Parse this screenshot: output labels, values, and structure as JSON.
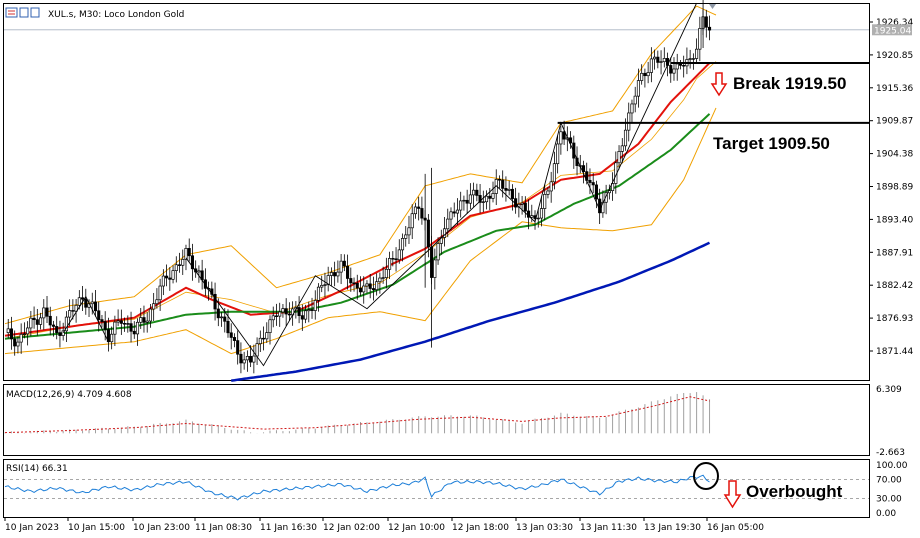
{
  "header": {
    "symbol": "XUL.s, M30:  Loco London Gold"
  },
  "indicators": {
    "macd_label": "MACD(12,26,9) 4.709 4.608",
    "rsi_label": "RSI(14) 66.31"
  },
  "annotations": {
    "break": "Break 1919.50",
    "target": "Target 1909.50",
    "overbought": "Overbought"
  },
  "colors": {
    "bull_candle": "#000000",
    "bear_candle": "#000000",
    "ma_fast": "#e3120b",
    "ma_mid": "#1a8c1a",
    "ma_slow": "#0018b5",
    "bollinger": "#f0a000",
    "macd_signal": "#d01818",
    "macd_hist": "#a0a0a0",
    "rsi_line": "#1e7fd8",
    "arrow": "#e3120b"
  },
  "chart_data": [
    {
      "type": "line",
      "name": "price",
      "chart_kind": "candlestick",
      "ylim": [
        1866.5,
        1931.0
      ],
      "y_ticks": [
        "1926.34",
        "1920.85",
        "1915.36",
        "1909.87",
        "1904.38",
        "1898.89",
        "1893.40",
        "1887.91",
        "1882.42",
        "1876.93",
        "1871.44"
      ],
      "current_price": "1925.04",
      "x_ticks": [
        "10 Jan 2023",
        "10 Jan 15:00",
        "10 Jan 23:00",
        "11 Jan 08:30",
        "11 Jan 16:30",
        "12 Jan 02:00",
        "12 Jan 10:00",
        "12 Jan 18:00",
        "13 Jan 03:30",
        "13 Jan 11:30",
        "13 Jan 19:30",
        "16 Jan 05:00"
      ],
      "levels": [
        {
          "label": "Break 1919.50",
          "value": 1919.5
        },
        {
          "label": "Target 1909.50",
          "value": 1909.5
        }
      ],
      "close_path": [
        [
          0,
          1874.5
        ],
        [
          4,
          1873.0
        ],
        [
          8,
          1876.0
        ],
        [
          12,
          1878.0
        ],
        [
          16,
          1874.0
        ],
        [
          20,
          1877.5
        ],
        [
          24,
          1880.5
        ],
        [
          28,
          1878.0
        ],
        [
          32,
          1874.0
        ],
        [
          36,
          1876.5
        ],
        [
          40,
          1875.0
        ],
        [
          44,
          1877.0
        ],
        [
          48,
          1882.0
        ],
        [
          52,
          1885.0
        ],
        [
          56,
          1887.5
        ],
        [
          60,
          1884.5
        ],
        [
          64,
          1880.0
        ],
        [
          68,
          1876.0
        ],
        [
          72,
          1871.0
        ],
        [
          76,
          1869.5
        ],
        [
          80,
          1874.5
        ],
        [
          84,
          1877.5
        ],
        [
          88,
          1878.5
        ],
        [
          92,
          1877.0
        ],
        [
          96,
          1880.0
        ],
        [
          100,
          1884.0
        ],
        [
          104,
          1885.5
        ],
        [
          108,
          1882.5
        ],
        [
          112,
          1881.5
        ],
        [
          116,
          1883.5
        ],
        [
          120,
          1886.5
        ],
        [
          124,
          1891.0
        ],
        [
          128,
          1896.0
        ],
        [
          130,
          1893.0
        ],
        [
          132,
          1884.0
        ],
        [
          136,
          1893.0
        ],
        [
          140,
          1895.0
        ],
        [
          144,
          1898.0
        ],
        [
          148,
          1896.0
        ],
        [
          152,
          1899.5
        ],
        [
          156,
          1898.0
        ],
        [
          160,
          1895.0
        ],
        [
          164,
          1893.5
        ],
        [
          168,
          1897.5
        ],
        [
          170,
          1903.0
        ],
        [
          172,
          1908.5
        ],
        [
          176,
          1904.0
        ],
        [
          180,
          1900.5
        ],
        [
          184,
          1895.5
        ],
        [
          188,
          1899.5
        ],
        [
          192,
          1909.0
        ],
        [
          196,
          1916.0
        ],
        [
          200,
          1920.0
        ],
        [
          204,
          1919.5
        ],
        [
          208,
          1918.5
        ],
        [
          212,
          1920.0
        ],
        [
          214,
          1922.5
        ],
        [
          216,
          1926.5
        ],
        [
          218,
          1925.0
        ]
      ],
      "series": [
        {
          "name": "MA fast",
          "values": [
            [
              0,
              1874
            ],
            [
              20,
              1875.5
            ],
            [
              40,
              1877
            ],
            [
              56,
              1882
            ],
            [
              64,
              1880
            ],
            [
              76,
              1877.5
            ],
            [
              90,
              1878
            ],
            [
              104,
              1881.5
            ],
            [
              120,
              1886
            ],
            [
              130,
              1888.5
            ],
            [
              144,
              1894
            ],
            [
              160,
              1896
            ],
            [
              172,
              1900
            ],
            [
              184,
              1901
            ],
            [
              196,
              1906
            ],
            [
              206,
              1913
            ],
            [
              218,
              1919.5
            ]
          ]
        },
        {
          "name": "MA mid",
          "values": [
            [
              0,
              1873.5
            ],
            [
              20,
              1874.5
            ],
            [
              40,
              1875.5
            ],
            [
              56,
              1877.5
            ],
            [
              70,
              1878
            ],
            [
              90,
              1878
            ],
            [
              104,
              1879.5
            ],
            [
              120,
              1882.5
            ],
            [
              136,
              1888
            ],
            [
              152,
              1891.5
            ],
            [
              164,
              1892.5
            ],
            [
              176,
              1896
            ],
            [
              190,
              1899
            ],
            [
              206,
              1905
            ],
            [
              218,
              1911
            ]
          ]
        },
        {
          "name": "MA slow",
          "values": [
            [
              70,
              1866.5
            ],
            [
              90,
              1868
            ],
            [
              110,
              1870
            ],
            [
              130,
              1873
            ],
            [
              150,
              1876.5
            ],
            [
              170,
              1879.5
            ],
            [
              190,
              1883
            ],
            [
              206,
              1886.5
            ],
            [
              218,
              1889.5
            ]
          ]
        },
        {
          "name": "Bollinger upper",
          "values": [
            [
              0,
              1876
            ],
            [
              20,
              1879
            ],
            [
              40,
              1880.5
            ],
            [
              56,
              1887.5
            ],
            [
              70,
              1889
            ],
            [
              84,
              1882
            ],
            [
              100,
              1884.5
            ],
            [
              116,
              1887.5
            ],
            [
              130,
              1899
            ],
            [
              144,
              1901
            ],
            [
              160,
              1899.5
            ],
            [
              172,
              1909.5
            ],
            [
              188,
              1911.5
            ],
            [
              200,
              1921
            ],
            [
              214,
              1929
            ],
            [
              220,
              1927.5
            ]
          ]
        },
        {
          "name": "Bollinger lower",
          "values": [
            [
              0,
              1871
            ],
            [
              20,
              1872
            ],
            [
              40,
              1873
            ],
            [
              56,
              1875
            ],
            [
              70,
              1871
            ],
            [
              84,
              1873.5
            ],
            [
              100,
              1877
            ],
            [
              116,
              1878
            ],
            [
              130,
              1876.5
            ],
            [
              144,
              1886.5
            ],
            [
              160,
              1893
            ],
            [
              172,
              1892
            ],
            [
              188,
              1891.5
            ],
            [
              200,
              1892.5
            ],
            [
              210,
              1900
            ],
            [
              220,
              1912
            ]
          ]
        }
      ]
    },
    {
      "type": "bar",
      "name": "MACD(12,26,9)",
      "ylim": [
        -2.663,
        6.309
      ],
      "y_ticks": [
        "6.309",
        "-2.663"
      ],
      "values_shown": {
        "macd": 4.709,
        "signal": 4.608
      },
      "histogram": [
        [
          0,
          0.1
        ],
        [
          20,
          0.4
        ],
        [
          40,
          0.9
        ],
        [
          56,
          1.8
        ],
        [
          64,
          1.2
        ],
        [
          76,
          0.1
        ],
        [
          90,
          0.5
        ],
        [
          104,
          1.2
        ],
        [
          120,
          1.9
        ],
        [
          130,
          2.4
        ],
        [
          144,
          2.5
        ],
        [
          160,
          1.5
        ],
        [
          172,
          2.8
        ],
        [
          184,
          2.2
        ],
        [
          196,
          3.8
        ],
        [
          206,
          5.3
        ],
        [
          214,
          6.0
        ],
        [
          218,
          4.7
        ]
      ],
      "signal": [
        [
          0,
          0.1
        ],
        [
          20,
          0.4
        ],
        [
          40,
          0.8
        ],
        [
          56,
          1.4
        ],
        [
          68,
          1.0
        ],
        [
          80,
          0.6
        ],
        [
          96,
          0.8
        ],
        [
          112,
          1.4
        ],
        [
          128,
          2.0
        ],
        [
          144,
          2.3
        ],
        [
          160,
          1.7
        ],
        [
          172,
          2.2
        ],
        [
          186,
          2.4
        ],
        [
          200,
          3.8
        ],
        [
          212,
          5.2
        ],
        [
          218,
          4.6
        ]
      ]
    },
    {
      "type": "line",
      "name": "RSI(14)",
      "ylim": [
        0,
        100
      ],
      "y_ticks": [
        "100.00",
        "70.00",
        "30.00",
        "0.00"
      ],
      "levels": [
        70,
        30
      ],
      "value_shown": 66.31,
      "values": [
        [
          0,
          55
        ],
        [
          8,
          45
        ],
        [
          16,
          52
        ],
        [
          24,
          42
        ],
        [
          32,
          55
        ],
        [
          40,
          48
        ],
        [
          48,
          60
        ],
        [
          56,
          65
        ],
        [
          64,
          42
        ],
        [
          72,
          30
        ],
        [
          80,
          45
        ],
        [
          88,
          50
        ],
        [
          96,
          55
        ],
        [
          104,
          60
        ],
        [
          112,
          45
        ],
        [
          120,
          58
        ],
        [
          126,
          62
        ],
        [
          130,
          72
        ],
        [
          132,
          35
        ],
        [
          138,
          64
        ],
        [
          146,
          65
        ],
        [
          152,
          62
        ],
        [
          160,
          50
        ],
        [
          166,
          58
        ],
        [
          172,
          70
        ],
        [
          178,
          55
        ],
        [
          184,
          40
        ],
        [
          190,
          66
        ],
        [
          196,
          72
        ],
        [
          202,
          67
        ],
        [
          208,
          65
        ],
        [
          212,
          74
        ],
        [
          216,
          76
        ],
        [
          218,
          66
        ]
      ]
    }
  ]
}
